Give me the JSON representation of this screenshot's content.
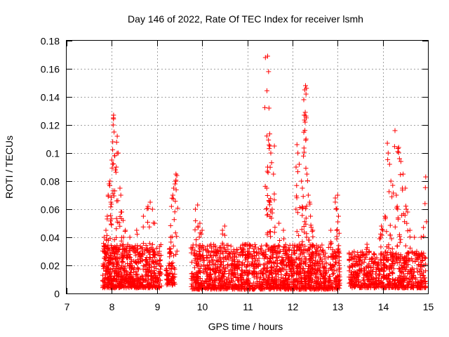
{
  "chart_data": {
    "type": "scatter",
    "title": "Day 146 of 2022, Rate Of TEC Index for receiver lsmh",
    "xlabel": "GPS time / hours",
    "ylabel": "ROTI / TECUs",
    "xlim": [
      7,
      15
    ],
    "ylim": [
      0,
      0.18
    ],
    "x_ticks": [
      7,
      8,
      9,
      10,
      11,
      12,
      13,
      14,
      15
    ],
    "y_ticks": [
      0,
      0.02,
      0.04,
      0.06,
      0.08,
      0.1,
      0.12,
      0.14,
      0.16,
      0.18
    ],
    "x_tick_labels": [
      "7",
      "8",
      "9",
      "10",
      "11",
      "12",
      "13",
      "14",
      "15"
    ],
    "y_tick_labels": [
      "0",
      "0.02",
      "0.04",
      "0.06",
      "0.08",
      "0.1",
      "0.12",
      "0.14",
      "0.16",
      "0.18"
    ],
    "grid": true,
    "marker": "+",
    "color": "#ff0000",
    "series": [
      {
        "name": "ROTI",
        "clusters": [
          {
            "x_range": [
              7.8,
              9.1
            ],
            "y_base": [
              0.004,
              0.035
            ],
            "count": 650
          },
          {
            "x_range": [
              9.2,
              9.4
            ],
            "y_base": [
              0.006,
              0.022
            ],
            "count": 60
          },
          {
            "x_range": [
              9.75,
              13.05
            ],
            "y_base": [
              0.003,
              0.035
            ],
            "count": 1500
          },
          {
            "x_range": [
              13.25,
              14.95
            ],
            "y_base": [
              0.004,
              0.03
            ],
            "count": 650
          }
        ],
        "peaks": [
          [
            7.83,
            0.04
          ],
          [
            7.85,
            0.03
          ],
          [
            7.87,
            0.045
          ],
          [
            7.9,
            0.055
          ],
          [
            7.92,
            0.07
          ],
          [
            7.94,
            0.078
          ],
          [
            7.96,
            0.08
          ],
          [
            7.98,
            0.065
          ],
          [
            8.0,
            0.095
          ],
          [
            8.02,
            0.108
          ],
          [
            8.03,
            0.12
          ],
          [
            8.04,
            0.127
          ],
          [
            8.05,
            0.115
          ],
          [
            8.06,
            0.098
          ],
          [
            8.08,
            0.088
          ],
          [
            8.1,
            0.09
          ],
          [
            8.12,
            0.112
          ],
          [
            8.14,
            0.1
          ],
          [
            8.18,
            0.075
          ],
          [
            8.2,
            0.07
          ],
          [
            8.22,
            0.058
          ],
          [
            8.25,
            0.052
          ],
          [
            8.3,
            0.045
          ],
          [
            8.4,
            0.04
          ],
          [
            8.55,
            0.045
          ],
          [
            8.7,
            0.055
          ],
          [
            8.8,
            0.062
          ],
          [
            8.85,
            0.065
          ],
          [
            8.9,
            0.06
          ],
          [
            8.95,
            0.05
          ],
          [
            9.32,
            0.062
          ],
          [
            9.35,
            0.07
          ],
          [
            9.37,
            0.075
          ],
          [
            9.4,
            0.078
          ],
          [
            9.42,
            0.085
          ],
          [
            9.44,
            0.084
          ],
          [
            9.3,
            0.04
          ],
          [
            9.28,
            0.032
          ],
          [
            9.85,
            0.06
          ],
          [
            9.9,
            0.063
          ],
          [
            9.95,
            0.05
          ],
          [
            10.0,
            0.045
          ],
          [
            10.45,
            0.045
          ],
          [
            10.5,
            0.048
          ],
          [
            10.9,
            0.035
          ],
          [
            11.0,
            0.03
          ],
          [
            11.4,
            0.168
          ],
          [
            11.45,
            0.169
          ],
          [
            11.47,
            0.158
          ],
          [
            11.48,
            0.132
          ],
          [
            11.5,
            0.105
          ],
          [
            11.52,
            0.1
          ],
          [
            11.45,
            0.09
          ],
          [
            11.43,
            0.075
          ],
          [
            11.5,
            0.065
          ],
          [
            11.55,
            0.06
          ],
          [
            11.6,
            0.105
          ],
          [
            11.58,
            0.085
          ],
          [
            11.7,
            0.05
          ],
          [
            11.8,
            0.045
          ],
          [
            12.1,
            0.106
          ],
          [
            12.12,
            0.1
          ],
          [
            12.08,
            0.09
          ],
          [
            12.15,
            0.092
          ],
          [
            12.2,
            0.08
          ],
          [
            12.22,
            0.075
          ],
          [
            12.25,
            0.138
          ],
          [
            12.27,
            0.145
          ],
          [
            12.29,
            0.148
          ],
          [
            12.3,
            0.142
          ],
          [
            12.26,
            0.127
          ],
          [
            12.28,
            0.122
          ],
          [
            12.3,
            0.11
          ],
          [
            12.32,
            0.085
          ],
          [
            12.35,
            0.07
          ],
          [
            12.38,
            0.065
          ],
          [
            12.4,
            0.055
          ],
          [
            12.45,
            0.045
          ],
          [
            12.85,
            0.045
          ],
          [
            12.95,
            0.068
          ],
          [
            13.0,
            0.07
          ],
          [
            12.98,
            0.06
          ],
          [
            13.02,
            0.055
          ],
          [
            13.65,
            0.035
          ],
          [
            13.7,
            0.03
          ],
          [
            13.95,
            0.04
          ],
          [
            13.97,
            0.048
          ],
          [
            14.0,
            0.045
          ],
          [
            14.05,
            0.055
          ],
          [
            14.1,
            0.107
          ],
          [
            14.12,
            0.1
          ],
          [
            14.15,
            0.092
          ],
          [
            14.18,
            0.08
          ],
          [
            14.22,
            0.077
          ],
          [
            14.27,
            0.116
          ],
          [
            14.3,
            0.07
          ],
          [
            14.32,
            0.062
          ],
          [
            14.35,
            0.104
          ],
          [
            14.37,
            0.096
          ],
          [
            14.4,
            0.094
          ],
          [
            14.45,
            0.085
          ],
          [
            14.5,
            0.075
          ],
          [
            14.52,
            0.06
          ],
          [
            14.55,
            0.058
          ],
          [
            14.6,
            0.045
          ],
          [
            14.7,
            0.04
          ],
          [
            14.85,
            0.04
          ],
          [
            14.9,
            0.047
          ],
          [
            14.95,
            0.083
          ]
        ]
      }
    ]
  }
}
